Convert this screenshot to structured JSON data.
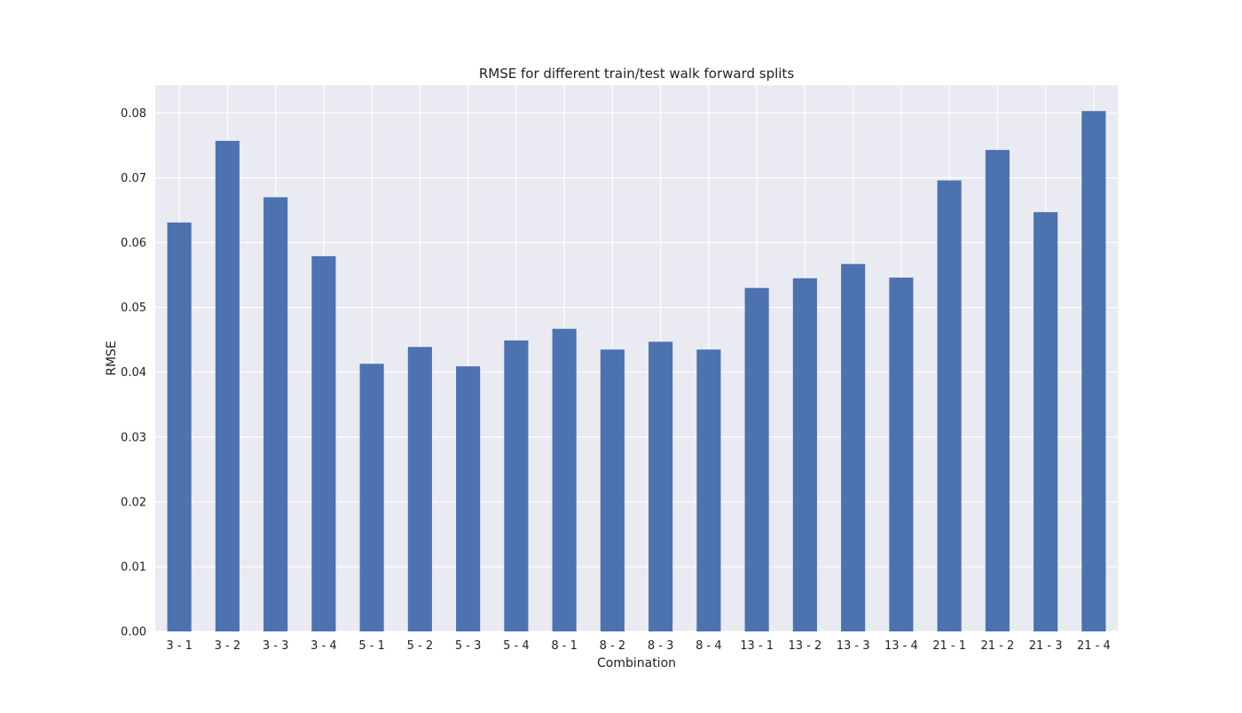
{
  "chart_data": {
    "type": "bar",
    "title": "RMSE for different train/test walk forward splits",
    "xlabel": "Combination",
    "ylabel": "RMSE",
    "categories": [
      "3 - 1",
      "3 - 2",
      "3 - 3",
      "3 - 4",
      "5 - 1",
      "5 - 2",
      "5 - 3",
      "5 - 4",
      "8 - 1",
      "8 - 2",
      "8 - 3",
      "8 - 4",
      "13 - 1",
      "13 - 2",
      "13 - 3",
      "13 - 4",
      "21 - 1",
      "21 - 2",
      "21 - 3",
      "21 - 4"
    ],
    "values": [
      0.0631,
      0.0757,
      0.067,
      0.0579,
      0.0413,
      0.0439,
      0.0409,
      0.0449,
      0.0467,
      0.0435,
      0.0447,
      0.0435,
      0.053,
      0.0545,
      0.0567,
      0.0546,
      0.0696,
      0.0743,
      0.0647,
      0.0803
    ],
    "ylim": [
      0,
      0.0843
    ],
    "yticks": [
      "0.00",
      "0.01",
      "0.02",
      "0.03",
      "0.04",
      "0.05",
      "0.06",
      "0.07",
      "0.08"
    ],
    "grid": true,
    "legend": "none",
    "colors": {
      "bar": "#4c72b0",
      "plot_background": "#eaeaf2",
      "grid": "#ffffff"
    }
  }
}
